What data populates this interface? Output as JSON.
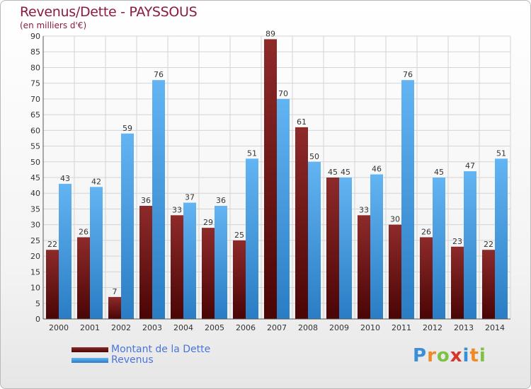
{
  "title": "Revenus/Dette - PAYSSOUS",
  "subtitle": "(en milliers d'€)",
  "logo": {
    "text": "Proxiti",
    "letter_colors": [
      "#3a8fd6",
      "#f08a24",
      "#7cc243",
      "#d9342b",
      "#3a8fd6",
      "#f08a24",
      "#7cc243"
    ]
  },
  "colors": {
    "dette": "#7a1a1a",
    "dette_dark": "#4a0505",
    "revenus": "#5aaef0",
    "revenus_dark": "#2a7dc4"
  },
  "chart_data": {
    "type": "bar",
    "title": "Revenus/Dette - PAYSSOUS",
    "subtitle": "(en milliers d'€)",
    "xlabel": "",
    "ylabel": "",
    "ylim": [
      0,
      90
    ],
    "ytick_step": 5,
    "grid": true,
    "legend_position": "bottom-left",
    "categories": [
      "2000",
      "2001",
      "2002",
      "2003",
      "2004",
      "2005",
      "2006",
      "2007",
      "2008",
      "2009",
      "2010",
      "2011",
      "2012",
      "2013",
      "2014"
    ],
    "series": [
      {
        "name": "Montant de la Dette",
        "values": [
          22,
          26,
          7,
          36,
          33,
          29,
          25,
          89,
          61,
          45,
          33,
          30,
          26,
          23,
          22
        ]
      },
      {
        "name": "Revenus",
        "values": [
          43,
          42,
          59,
          76,
          37,
          36,
          51,
          70,
          50,
          45,
          46,
          76,
          45,
          47,
          51
        ]
      }
    ]
  }
}
